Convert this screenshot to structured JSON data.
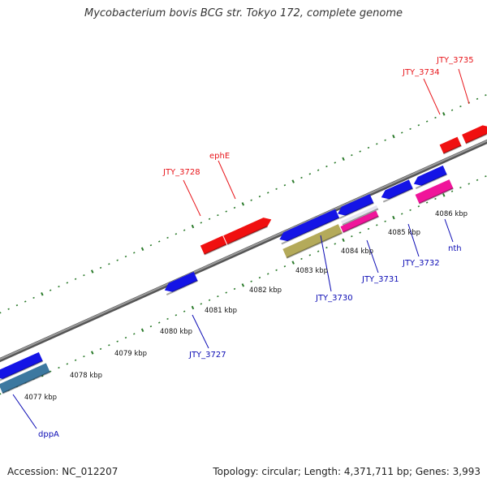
{
  "title": "Mycobacterium bovis BCG str. Tokyo 172, complete genome",
  "footer": {
    "accession": "Accession: NC_012207",
    "summary": "Topology: circular; Length: 4,371,711 bp; Genes: 3,993"
  },
  "colors": {
    "forward_label": "#e8161b",
    "reverse_label": "#0a0ab4",
    "tick": "#2a7a2a",
    "backbone": "#777777",
    "gene_red": "#f01010",
    "gene_blue": "#1414e6",
    "gene_pink": "#f0149a",
    "gene_olive": "#b4aa5a",
    "gene_steel": "#3c78a0",
    "gene_white": "#e6e6f0"
  },
  "position_ticks": [
    {
      "label": "4077 kbp",
      "kbp": 4077
    },
    {
      "label": "4078 kbp",
      "kbp": 4078
    },
    {
      "label": "4079 kbp",
      "kbp": 4079
    },
    {
      "label": "4080 kbp",
      "kbp": 4080
    },
    {
      "label": "4081 kbp",
      "kbp": 4081
    },
    {
      "label": "4082 kbp",
      "kbp": 4082
    },
    {
      "label": "4083 kbp",
      "kbp": 4083
    },
    {
      "label": "4084 kbp",
      "kbp": 4084
    },
    {
      "label": "4085 kbp",
      "kbp": 4085
    },
    {
      "label": "4086 kbp",
      "kbp": 4086
    }
  ],
  "gene_labels": [
    {
      "name": "JTY_3735",
      "strand": "forward"
    },
    {
      "name": "JTY_3734",
      "strand": "forward"
    },
    {
      "name": "ephE",
      "strand": "forward"
    },
    {
      "name": "JTY_3728",
      "strand": "forward"
    },
    {
      "name": "nth",
      "strand": "reverse"
    },
    {
      "name": "JTY_3732",
      "strand": "reverse"
    },
    {
      "name": "JTY_3731",
      "strand": "reverse"
    },
    {
      "name": "JTY_3730",
      "strand": "reverse"
    },
    {
      "name": "JTY_3727",
      "strand": "reverse"
    },
    {
      "name": "dppA",
      "strand": "reverse"
    }
  ]
}
